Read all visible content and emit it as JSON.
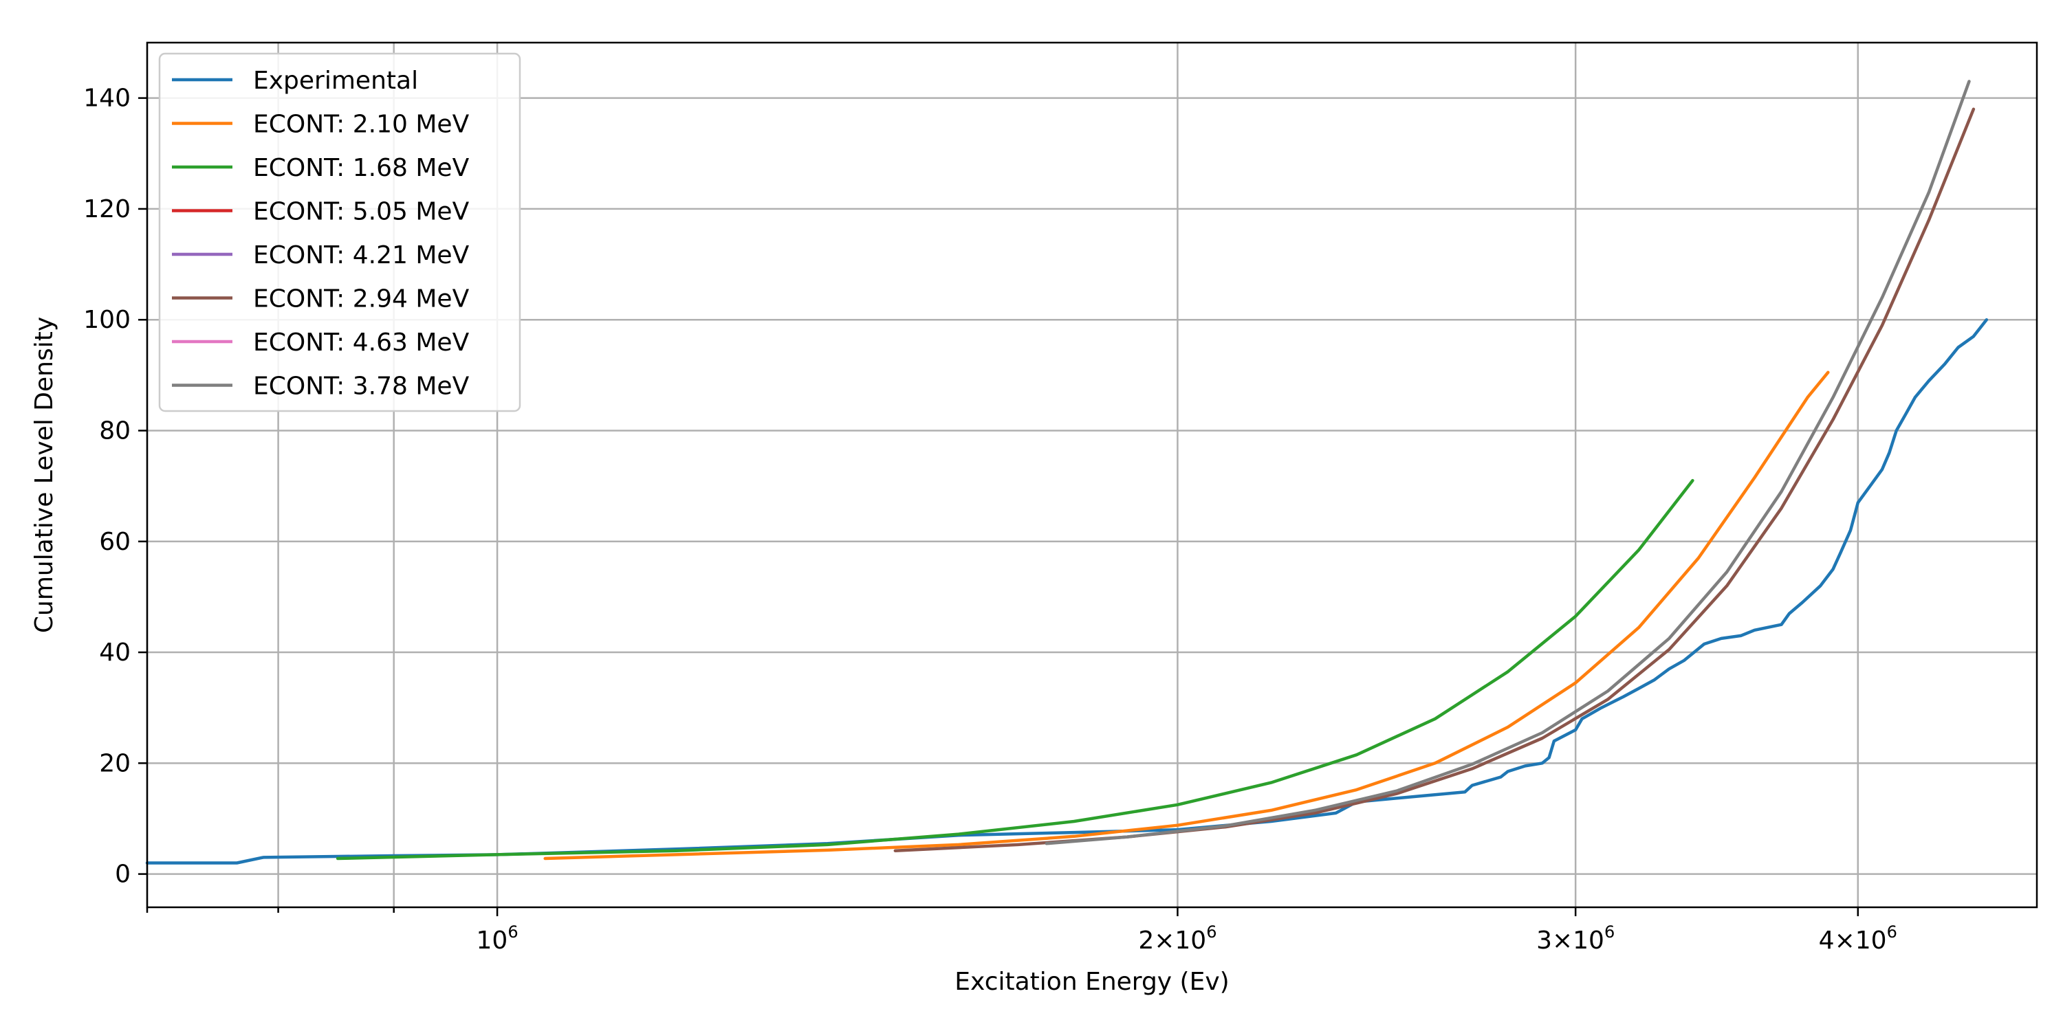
{
  "chart_data": {
    "type": "line",
    "title": "",
    "xlabel": "Excitation Energy (Ev)",
    "ylabel": "Cumulative Level Density",
    "xscale": "log",
    "xlim": [
      700000,
      4800000
    ],
    "ylim": [
      -6,
      150
    ],
    "grid": true,
    "legend_position": "top-left",
    "x_ticks": [
      {
        "value": 1000000,
        "mantissa": "",
        "base": "10",
        "exponent": "6"
      },
      {
        "value": 2000000,
        "mantissa": "2×",
        "base": "10",
        "exponent": "6"
      },
      {
        "value": 3000000,
        "mantissa": "3×",
        "base": "10",
        "exponent": "6"
      },
      {
        "value": 4000000,
        "mantissa": "4×",
        "base": "10",
        "exponent": "6"
      }
    ],
    "x_minor_ticks": [
      700000,
      800000,
      900000
    ],
    "y_ticks": [
      0,
      20,
      40,
      60,
      80,
      100,
      120,
      140
    ],
    "series": [
      {
        "name": "Experimental",
        "color": "#1f77b4",
        "points": [
          [
            700000,
            2
          ],
          [
            767000,
            2
          ],
          [
            788000,
            3
          ],
          [
            900000,
            3.3
          ],
          [
            1000000,
            3.5
          ],
          [
            1200000,
            4.5
          ],
          [
            1400000,
            5.5
          ],
          [
            1600000,
            7
          ],
          [
            1800000,
            7.5
          ],
          [
            2000000,
            8
          ],
          [
            2200000,
            9.5
          ],
          [
            2350000,
            11
          ],
          [
            2400000,
            13
          ],
          [
            2550000,
            14
          ],
          [
            2680000,
            14.8
          ],
          [
            2700000,
            16
          ],
          [
            2780000,
            17.5
          ],
          [
            2800000,
            18.5
          ],
          [
            2850000,
            19.5
          ],
          [
            2900000,
            20
          ],
          [
            2920000,
            21
          ],
          [
            2935000,
            24
          ],
          [
            3000000,
            26
          ],
          [
            3020000,
            28
          ],
          [
            3080000,
            30
          ],
          [
            3150000,
            32
          ],
          [
            3200000,
            33.5
          ],
          [
            3250000,
            35
          ],
          [
            3300000,
            37
          ],
          [
            3350000,
            38.5
          ],
          [
            3420000,
            41.5
          ],
          [
            3480000,
            42.5
          ],
          [
            3550000,
            43
          ],
          [
            3600000,
            44
          ],
          [
            3700000,
            45
          ],
          [
            3730000,
            47
          ],
          [
            3780000,
            49
          ],
          [
            3850000,
            52
          ],
          [
            3900000,
            55
          ],
          [
            3930000,
            58
          ],
          [
            3970000,
            62
          ],
          [
            4000000,
            67
          ],
          [
            4050000,
            70
          ],
          [
            4100000,
            73
          ],
          [
            4130000,
            76
          ],
          [
            4160000,
            80
          ],
          [
            4200000,
            83
          ],
          [
            4240000,
            86
          ],
          [
            4300000,
            89
          ],
          [
            4370000,
            92
          ],
          [
            4430000,
            95
          ],
          [
            4500000,
            97
          ],
          [
            4560000,
            100
          ]
        ]
      },
      {
        "name": "ECONT: 2.10 MeV",
        "color": "#ff7f0e",
        "points": [
          [
            1050000,
            2.8
          ],
          [
            1200000,
            3.5
          ],
          [
            1400000,
            4.3
          ],
          [
            1600000,
            5.3
          ],
          [
            1800000,
            6.8
          ],
          [
            2000000,
            8.8
          ],
          [
            2200000,
            11.5
          ],
          [
            2400000,
            15.2
          ],
          [
            2600000,
            20
          ],
          [
            2800000,
            26.5
          ],
          [
            3000000,
            34.5
          ],
          [
            3200000,
            44.5
          ],
          [
            3400000,
            57
          ],
          [
            3600000,
            71.5
          ],
          [
            3800000,
            86
          ],
          [
            3880000,
            90.5
          ]
        ]
      },
      {
        "name": "ECONT: 1.68 MeV",
        "color": "#2ca02c",
        "points": [
          [
            850000,
            2.8
          ],
          [
            1000000,
            3.5
          ],
          [
            1200000,
            4.2
          ],
          [
            1400000,
            5.3
          ],
          [
            1600000,
            7.2
          ],
          [
            1800000,
            9.5
          ],
          [
            2000000,
            12.5
          ],
          [
            2200000,
            16.5
          ],
          [
            2400000,
            21.5
          ],
          [
            2600000,
            28
          ],
          [
            2800000,
            36.5
          ],
          [
            3000000,
            46.5
          ],
          [
            3200000,
            58.5
          ],
          [
            3380000,
            71
          ]
        ]
      },
      {
        "name": "ECONT: 5.05 MeV",
        "color": "#d62728",
        "points": []
      },
      {
        "name": "ECONT: 4.21 MeV",
        "color": "#9467bd",
        "points": []
      },
      {
        "name": "ECONT: 2.94 MeV",
        "color": "#8c564b",
        "points": [
          [
            1500000,
            4.2
          ],
          [
            1700000,
            5.3
          ],
          [
            1900000,
            6.7
          ],
          [
            2100000,
            8.5
          ],
          [
            2300000,
            11
          ],
          [
            2500000,
            14.5
          ],
          [
            2700000,
            19
          ],
          [
            2900000,
            24.5
          ],
          [
            3100000,
            31.5
          ],
          [
            3300000,
            40.5
          ],
          [
            3500000,
            52
          ],
          [
            3700000,
            66
          ],
          [
            3900000,
            82
          ],
          [
            4100000,
            99
          ],
          [
            4300000,
            118
          ],
          [
            4500000,
            138
          ]
        ]
      },
      {
        "name": "ECONT: 4.63 MeV",
        "color": "#e377c2",
        "points": []
      },
      {
        "name": "ECONT: 3.78 MeV",
        "color": "#7f7f7f",
        "points": [
          [
            1750000,
            5.5
          ],
          [
            1900000,
            6.7
          ],
          [
            2100000,
            8.7
          ],
          [
            2300000,
            11.5
          ],
          [
            2500000,
            15
          ],
          [
            2700000,
            19.8
          ],
          [
            2900000,
            25.5
          ],
          [
            3100000,
            33
          ],
          [
            3300000,
            42.5
          ],
          [
            3500000,
            54.5
          ],
          [
            3700000,
            69
          ],
          [
            3900000,
            86
          ],
          [
            4100000,
            104
          ],
          [
            4300000,
            123
          ],
          [
            4480000,
            143
          ]
        ]
      }
    ]
  }
}
